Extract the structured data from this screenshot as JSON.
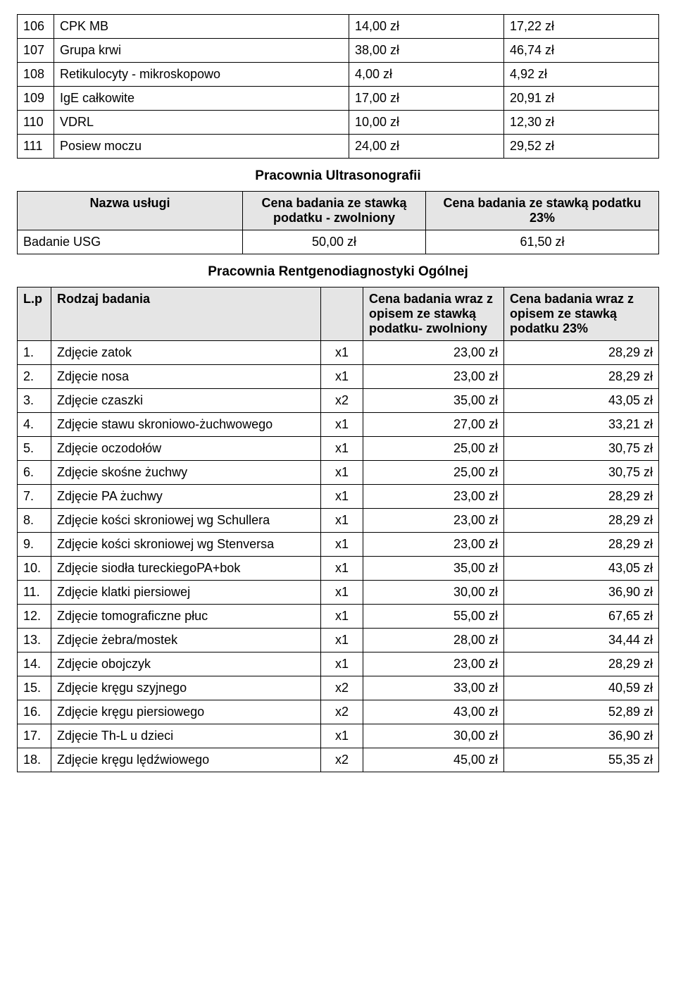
{
  "table1": {
    "rows": [
      {
        "no": "106",
        "name": "CPK MB",
        "p1": "14,00 zł",
        "p2": "17,22 zł"
      },
      {
        "no": "107",
        "name": "Grupa krwi",
        "p1": "38,00 zł",
        "p2": "46,74 zł"
      },
      {
        "no": "108",
        "name": "Retikulocyty - mikroskopowo",
        "p1": "4,00 zł",
        "p2": "4,92 zł"
      },
      {
        "no": "109",
        "name": "IgE całkowite",
        "p1": "17,00 zł",
        "p2": "20,91 zł"
      },
      {
        "no": "110",
        "name": "VDRL",
        "p1": "10,00 zł",
        "p2": "12,30 zł"
      },
      {
        "no": "111",
        "name": "Posiew moczu",
        "p1": "24,00 zł",
        "p2": "29,52 zł"
      }
    ]
  },
  "section2": {
    "title": "Pracownia Ultrasonografii",
    "headers": {
      "h1": "Nazwa usługi",
      "h2": "Cena badania ze stawką podatku - zwolniony",
      "h3": "Cena badania ze stawką podatku 23%"
    },
    "row": {
      "name": "Badanie USG",
      "p1": "50,00 zł",
      "p2": "61,50 zł"
    }
  },
  "section3": {
    "title": "Pracownia Rentgenodiagnostyki Ogólnej",
    "headers": {
      "h1": "L.p",
      "h2": "Rodzaj badania",
      "h3": "",
      "h4": "Cena badania wraz z opisem ze stawką podatku- zwolniony",
      "h5": "Cena badania wraz z opisem ze stawką podatku 23%"
    },
    "rows": [
      {
        "no": "1.",
        "name": "Zdjęcie zatok",
        "qty": "x1",
        "p1": "23,00 zł",
        "p2": "28,29 zł"
      },
      {
        "no": "2.",
        "name": "Zdjęcie nosa",
        "qty": "x1",
        "p1": "23,00 zł",
        "p2": "28,29 zł"
      },
      {
        "no": "3.",
        "name": "Zdjęcie czaszki",
        "qty": "x2",
        "p1": "35,00 zł",
        "p2": "43,05 zł"
      },
      {
        "no": "4.",
        "name": "Zdjęcie stawu skroniowo-żuchwowego",
        "qty": "x1",
        "p1": "27,00 zł",
        "p2": "33,21 zł"
      },
      {
        "no": "5.",
        "name": "Zdjęcie oczodołów",
        "qty": "x1",
        "p1": "25,00 zł",
        "p2": "30,75 zł"
      },
      {
        "no": "6.",
        "name": "Zdjęcie skośne żuchwy",
        "qty": "x1",
        "p1": "25,00 zł",
        "p2": "30,75 zł"
      },
      {
        "no": "7.",
        "name": "Zdjęcie PA żuchwy",
        "qty": "x1",
        "p1": "23,00 zł",
        "p2": "28,29 zł"
      },
      {
        "no": "8.",
        "name": "Zdjęcie kości skroniowej wg Schullera",
        "qty": "x1",
        "p1": "23,00 zł",
        "p2": "28,29 zł"
      },
      {
        "no": "9.",
        "name": "Zdjęcie kości skroniowej wg Stenversa",
        "qty": "x1",
        "p1": "23,00 zł",
        "p2": "28,29 zł"
      },
      {
        "no": "10.",
        "name": "Zdjęcie siodła tureckiegoPA+bok",
        "qty": "x1",
        "p1": "35,00 zł",
        "p2": "43,05 zł"
      },
      {
        "no": "11.",
        "name": "Zdjęcie klatki piersiowej",
        "qty": "x1",
        "p1": "30,00 zł",
        "p2": "36,90 zł"
      },
      {
        "no": "12.",
        "name": "Zdjęcie tomograficzne płuc",
        "qty": "x1",
        "p1": "55,00 zł",
        "p2": "67,65 zł"
      },
      {
        "no": "13.",
        "name": "Zdjęcie żebra/mostek",
        "qty": "x1",
        "p1": "28,00 zł",
        "p2": "34,44 zł"
      },
      {
        "no": "14.",
        "name": "Zdjęcie obojczyk",
        "qty": "x1",
        "p1": "23,00 zł",
        "p2": "28,29 zł"
      },
      {
        "no": "15.",
        "name": "Zdjęcie kręgu szyjnego",
        "qty": "x2",
        "p1": "33,00 zł",
        "p2": "40,59 zł"
      },
      {
        "no": "16.",
        "name": "Zdjęcie kręgu piersiowego",
        "qty": "x2",
        "p1": "43,00 zł",
        "p2": "52,89 zł"
      },
      {
        "no": "17.",
        "name": "Zdjęcie Th-L u dzieci",
        "qty": "x1",
        "p1": "30,00 zł",
        "p2": "36,90 zł"
      },
      {
        "no": "18.",
        "name": "Zdjęcie kręgu lędźwiowego",
        "qty": "x2",
        "p1": "45,00 zł",
        "p2": "55,35 zł"
      }
    ]
  }
}
